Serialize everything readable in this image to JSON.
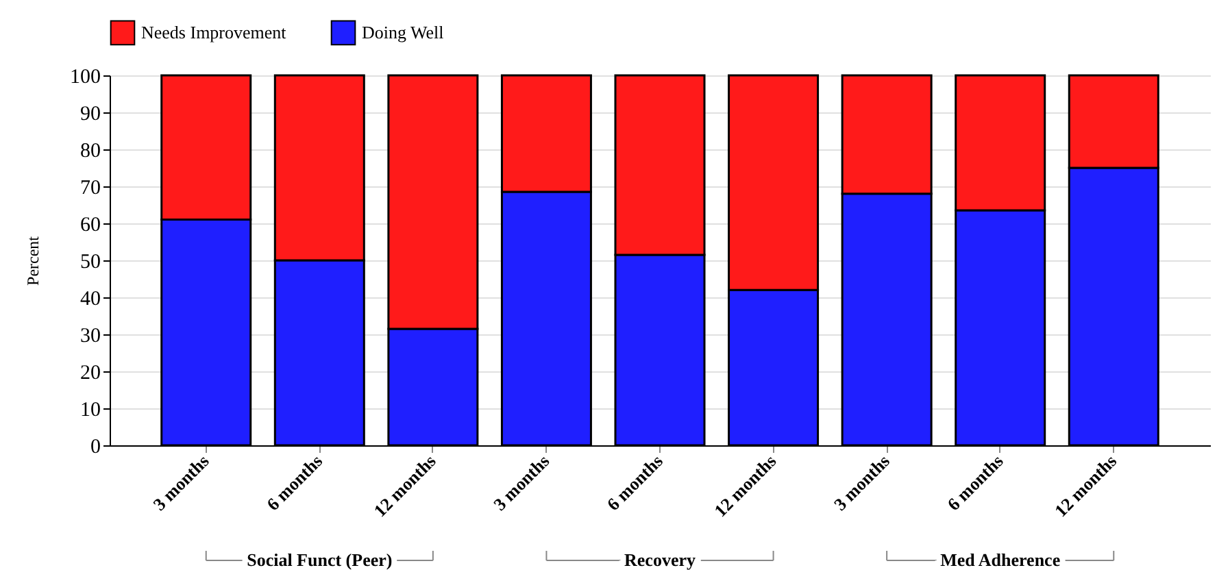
{
  "chart_data": {
    "type": "bar",
    "stacked": true,
    "ylabel": "Percent",
    "categories": [
      "3 months",
      "6 months",
      "12 months",
      "3 months",
      "6 months",
      "12 months",
      "3 months",
      "6 months",
      "12 months"
    ],
    "series": [
      {
        "name": "Doing Well",
        "color": "#1f1fff",
        "values": [
          61,
          50,
          31.5,
          68.5,
          51.5,
          42,
          68,
          63.5,
          75
        ]
      },
      {
        "name": "Needs Improvement",
        "color": "#ff1a1a",
        "values": [
          39,
          50,
          68.5,
          31.5,
          48.5,
          58,
          32,
          36.5,
          25
        ]
      }
    ],
    "annotations": [
      "Social Funct (Peer)",
      "Recovery",
      "Med Adherence"
    ],
    "ylim": [
      0,
      100
    ],
    "yticks": [
      0,
      10,
      20,
      30,
      40,
      50,
      60,
      70,
      80,
      90,
      100
    ],
    "grid": "y",
    "legend": "top"
  }
}
